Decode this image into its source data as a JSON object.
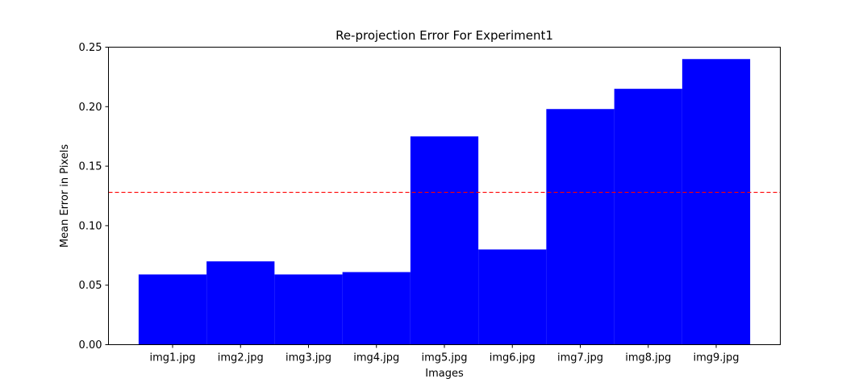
{
  "chart_data": {
    "type": "bar",
    "title": "Re-projection Error For Experiment1",
    "xlabel": "Images",
    "ylabel": "Mean Error in Pixels",
    "categories": [
      "img1.jpg",
      "img2.jpg",
      "img3.jpg",
      "img4.jpg",
      "img5.jpg",
      "img6.jpg",
      "img7.jpg",
      "img8.jpg",
      "img9.jpg"
    ],
    "values": [
      0.059,
      0.07,
      0.059,
      0.061,
      0.175,
      0.08,
      0.198,
      0.215,
      0.24
    ],
    "ylim": [
      0,
      0.25
    ],
    "yticks": [
      "0.00",
      "0.05",
      "0.10",
      "0.15",
      "0.20",
      "0.25"
    ],
    "mean_line": 0.128,
    "bar_color": "#0000ff",
    "mean_line_color": "#ff0000",
    "grid": false
  }
}
